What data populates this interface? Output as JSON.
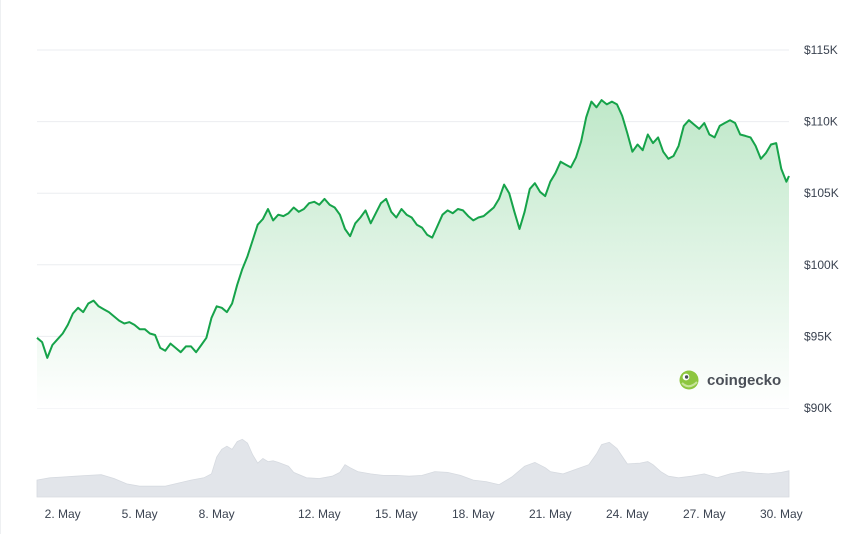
{
  "chart_data": {
    "type": "line",
    "title": "",
    "xlabel": "",
    "ylabel": "",
    "ylim": [
      90000,
      115000
    ],
    "grid": true,
    "x_unit": "day of May",
    "x_ticks": [
      {
        "x": 2,
        "label": "2. May"
      },
      {
        "x": 5,
        "label": "5. May"
      },
      {
        "x": 8,
        "label": "8. May"
      },
      {
        "x": 12,
        "label": "12. May"
      },
      {
        "x": 15,
        "label": "15. May"
      },
      {
        "x": 18,
        "label": "18. May"
      },
      {
        "x": 21,
        "label": "21. May"
      },
      {
        "x": 24,
        "label": "24. May"
      },
      {
        "x": 27,
        "label": "27. May"
      },
      {
        "x": 30,
        "label": "30. May"
      }
    ],
    "y_ticks": [
      {
        "value": 115000,
        "label": "$115K"
      },
      {
        "value": 110000,
        "label": "$110K"
      },
      {
        "value": 105000,
        "label": "$105K"
      },
      {
        "value": 100000,
        "label": "$100K"
      },
      {
        "value": 95000,
        "label": "$95K"
      },
      {
        "value": 90000,
        "label": "$90K"
      }
    ],
    "series": [
      {
        "name": "price",
        "color": "#16a34a",
        "points": [
          [
            1.0,
            94900
          ],
          [
            1.2,
            94600
          ],
          [
            1.4,
            93500
          ],
          [
            1.6,
            94400
          ],
          [
            1.8,
            94800
          ],
          [
            2.0,
            95200
          ],
          [
            2.2,
            95800
          ],
          [
            2.4,
            96600
          ],
          [
            2.6,
            97000
          ],
          [
            2.8,
            96700
          ],
          [
            3.0,
            97300
          ],
          [
            3.2,
            97500
          ],
          [
            3.4,
            97100
          ],
          [
            3.6,
            96900
          ],
          [
            3.8,
            96700
          ],
          [
            4.0,
            96400
          ],
          [
            4.2,
            96100
          ],
          [
            4.4,
            95900
          ],
          [
            4.6,
            96000
          ],
          [
            4.8,
            95800
          ],
          [
            5.0,
            95500
          ],
          [
            5.2,
            95500
          ],
          [
            5.4,
            95200
          ],
          [
            5.6,
            95100
          ],
          [
            5.8,
            94200
          ],
          [
            6.0,
            94000
          ],
          [
            6.2,
            94500
          ],
          [
            6.4,
            94200
          ],
          [
            6.6,
            93900
          ],
          [
            6.8,
            94300
          ],
          [
            7.0,
            94300
          ],
          [
            7.2,
            93900
          ],
          [
            7.4,
            94400
          ],
          [
            7.6,
            94900
          ],
          [
            7.8,
            96300
          ],
          [
            8.0,
            97100
          ],
          [
            8.2,
            97000
          ],
          [
            8.4,
            96700
          ],
          [
            8.6,
            97300
          ],
          [
            8.8,
            98600
          ],
          [
            9.0,
            99700
          ],
          [
            9.2,
            100600
          ],
          [
            9.4,
            101700
          ],
          [
            9.6,
            102800
          ],
          [
            9.8,
            103200
          ],
          [
            10.0,
            103900
          ],
          [
            10.2,
            103100
          ],
          [
            10.4,
            103500
          ],
          [
            10.6,
            103400
          ],
          [
            10.8,
            103600
          ],
          [
            11.0,
            104000
          ],
          [
            11.2,
            103700
          ],
          [
            11.4,
            103900
          ],
          [
            11.6,
            104300
          ],
          [
            11.8,
            104400
          ],
          [
            12.0,
            104200
          ],
          [
            12.2,
            104600
          ],
          [
            12.4,
            104200
          ],
          [
            12.6,
            104000
          ],
          [
            12.8,
            103500
          ],
          [
            13.0,
            102500
          ],
          [
            13.2,
            102000
          ],
          [
            13.4,
            102900
          ],
          [
            13.6,
            103300
          ],
          [
            13.8,
            103800
          ],
          [
            14.0,
            102900
          ],
          [
            14.2,
            103600
          ],
          [
            14.4,
            104300
          ],
          [
            14.6,
            104600
          ],
          [
            14.8,
            103700
          ],
          [
            15.0,
            103300
          ],
          [
            15.2,
            103900
          ],
          [
            15.4,
            103500
          ],
          [
            15.6,
            103300
          ],
          [
            15.8,
            102800
          ],
          [
            16.0,
            102600
          ],
          [
            16.2,
            102100
          ],
          [
            16.4,
            101900
          ],
          [
            16.6,
            102700
          ],
          [
            16.8,
            103500
          ],
          [
            17.0,
            103800
          ],
          [
            17.2,
            103600
          ],
          [
            17.4,
            103900
          ],
          [
            17.6,
            103800
          ],
          [
            17.8,
            103400
          ],
          [
            18.0,
            103100
          ],
          [
            18.2,
            103300
          ],
          [
            18.4,
            103400
          ],
          [
            18.6,
            103700
          ],
          [
            18.8,
            104000
          ],
          [
            19.0,
            104600
          ],
          [
            19.2,
            105600
          ],
          [
            19.4,
            105000
          ],
          [
            19.6,
            103700
          ],
          [
            19.8,
            102500
          ],
          [
            20.0,
            103700
          ],
          [
            20.2,
            105300
          ],
          [
            20.4,
            105700
          ],
          [
            20.6,
            105100
          ],
          [
            20.8,
            104800
          ],
          [
            21.0,
            105800
          ],
          [
            21.2,
            106400
          ],
          [
            21.4,
            107200
          ],
          [
            21.6,
            107000
          ],
          [
            21.8,
            106800
          ],
          [
            22.0,
            107500
          ],
          [
            22.2,
            108600
          ],
          [
            22.4,
            110300
          ],
          [
            22.6,
            111400
          ],
          [
            22.8,
            111000
          ],
          [
            23.0,
            111500
          ],
          [
            23.2,
            111200
          ],
          [
            23.4,
            111400
          ],
          [
            23.6,
            111200
          ],
          [
            23.8,
            110400
          ],
          [
            24.0,
            109200
          ],
          [
            24.2,
            107900
          ],
          [
            24.4,
            108400
          ],
          [
            24.6,
            108000
          ],
          [
            24.8,
            109100
          ],
          [
            25.0,
            108500
          ],
          [
            25.2,
            108900
          ],
          [
            25.4,
            107900
          ],
          [
            25.6,
            107400
          ],
          [
            25.8,
            107600
          ],
          [
            26.0,
            108300
          ],
          [
            26.2,
            109700
          ],
          [
            26.4,
            110100
          ],
          [
            26.6,
            109800
          ],
          [
            26.8,
            109500
          ],
          [
            27.0,
            109900
          ],
          [
            27.2,
            109100
          ],
          [
            27.4,
            108900
          ],
          [
            27.6,
            109700
          ],
          [
            27.8,
            109900
          ],
          [
            28.0,
            110100
          ],
          [
            28.2,
            109900
          ],
          [
            28.4,
            109100
          ],
          [
            28.6,
            109000
          ],
          [
            28.8,
            108900
          ],
          [
            29.0,
            108300
          ],
          [
            29.2,
            107400
          ],
          [
            29.4,
            107800
          ],
          [
            29.6,
            108400
          ],
          [
            29.8,
            108500
          ],
          [
            30.0,
            106700
          ],
          [
            30.2,
            105800
          ],
          [
            30.3,
            106200
          ]
        ]
      },
      {
        "name": "volume",
        "color": "#e2e5ea",
        "points": [
          [
            1.0,
            0.22
          ],
          [
            1.5,
            0.25
          ],
          [
            2.0,
            0.26
          ],
          [
            2.5,
            0.27
          ],
          [
            3.0,
            0.28
          ],
          [
            3.5,
            0.29
          ],
          [
            4.0,
            0.24
          ],
          [
            4.5,
            0.17
          ],
          [
            5.0,
            0.14
          ],
          [
            5.5,
            0.14
          ],
          [
            6.0,
            0.14
          ],
          [
            6.5,
            0.18
          ],
          [
            7.0,
            0.22
          ],
          [
            7.5,
            0.25
          ],
          [
            7.8,
            0.3
          ],
          [
            8.0,
            0.52
          ],
          [
            8.2,
            0.62
          ],
          [
            8.4,
            0.66
          ],
          [
            8.6,
            0.62
          ],
          [
            8.8,
            0.72
          ],
          [
            9.0,
            0.75
          ],
          [
            9.2,
            0.7
          ],
          [
            9.4,
            0.55
          ],
          [
            9.6,
            0.44
          ],
          [
            9.8,
            0.5
          ],
          [
            10.0,
            0.46
          ],
          [
            10.2,
            0.47
          ],
          [
            10.4,
            0.45
          ],
          [
            10.8,
            0.4
          ],
          [
            11.0,
            0.32
          ],
          [
            11.5,
            0.25
          ],
          [
            12.0,
            0.24
          ],
          [
            12.5,
            0.27
          ],
          [
            12.8,
            0.32
          ],
          [
            13.0,
            0.42
          ],
          [
            13.2,
            0.38
          ],
          [
            13.5,
            0.33
          ],
          [
            14.0,
            0.3
          ],
          [
            14.5,
            0.28
          ],
          [
            15.0,
            0.28
          ],
          [
            15.5,
            0.27
          ],
          [
            16.0,
            0.28
          ],
          [
            16.5,
            0.33
          ],
          [
            17.0,
            0.32
          ],
          [
            17.5,
            0.28
          ],
          [
            18.0,
            0.22
          ],
          [
            18.5,
            0.2
          ],
          [
            19.0,
            0.16
          ],
          [
            19.5,
            0.26
          ],
          [
            20.0,
            0.4
          ],
          [
            20.4,
            0.45
          ],
          [
            20.8,
            0.38
          ],
          [
            21.0,
            0.33
          ],
          [
            21.5,
            0.3
          ],
          [
            22.0,
            0.36
          ],
          [
            22.5,
            0.42
          ],
          [
            22.8,
            0.56
          ],
          [
            23.0,
            0.68
          ],
          [
            23.3,
            0.71
          ],
          [
            23.6,
            0.63
          ],
          [
            24.0,
            0.43
          ],
          [
            24.5,
            0.44
          ],
          [
            24.8,
            0.46
          ],
          [
            25.0,
            0.42
          ],
          [
            25.3,
            0.33
          ],
          [
            25.6,
            0.27
          ],
          [
            26.0,
            0.25
          ],
          [
            26.5,
            0.27
          ],
          [
            27.0,
            0.3
          ],
          [
            27.5,
            0.25
          ],
          [
            28.0,
            0.3
          ],
          [
            28.5,
            0.33
          ],
          [
            29.0,
            0.31
          ],
          [
            29.5,
            0.3
          ],
          [
            30.0,
            0.32
          ],
          [
            30.3,
            0.34
          ]
        ]
      }
    ]
  },
  "watermark": {
    "brand": "coingecko",
    "logo_icon": "gecko-logo-icon",
    "logo_color": "#8dc63f"
  },
  "colors": {
    "line": "#16a34a",
    "area_top": "#bfe8c9",
    "area_bottom": "#ffffff",
    "grid": "#ebedf0",
    "volume": "#e2e5ea",
    "tick_text": "#3b4351"
  }
}
